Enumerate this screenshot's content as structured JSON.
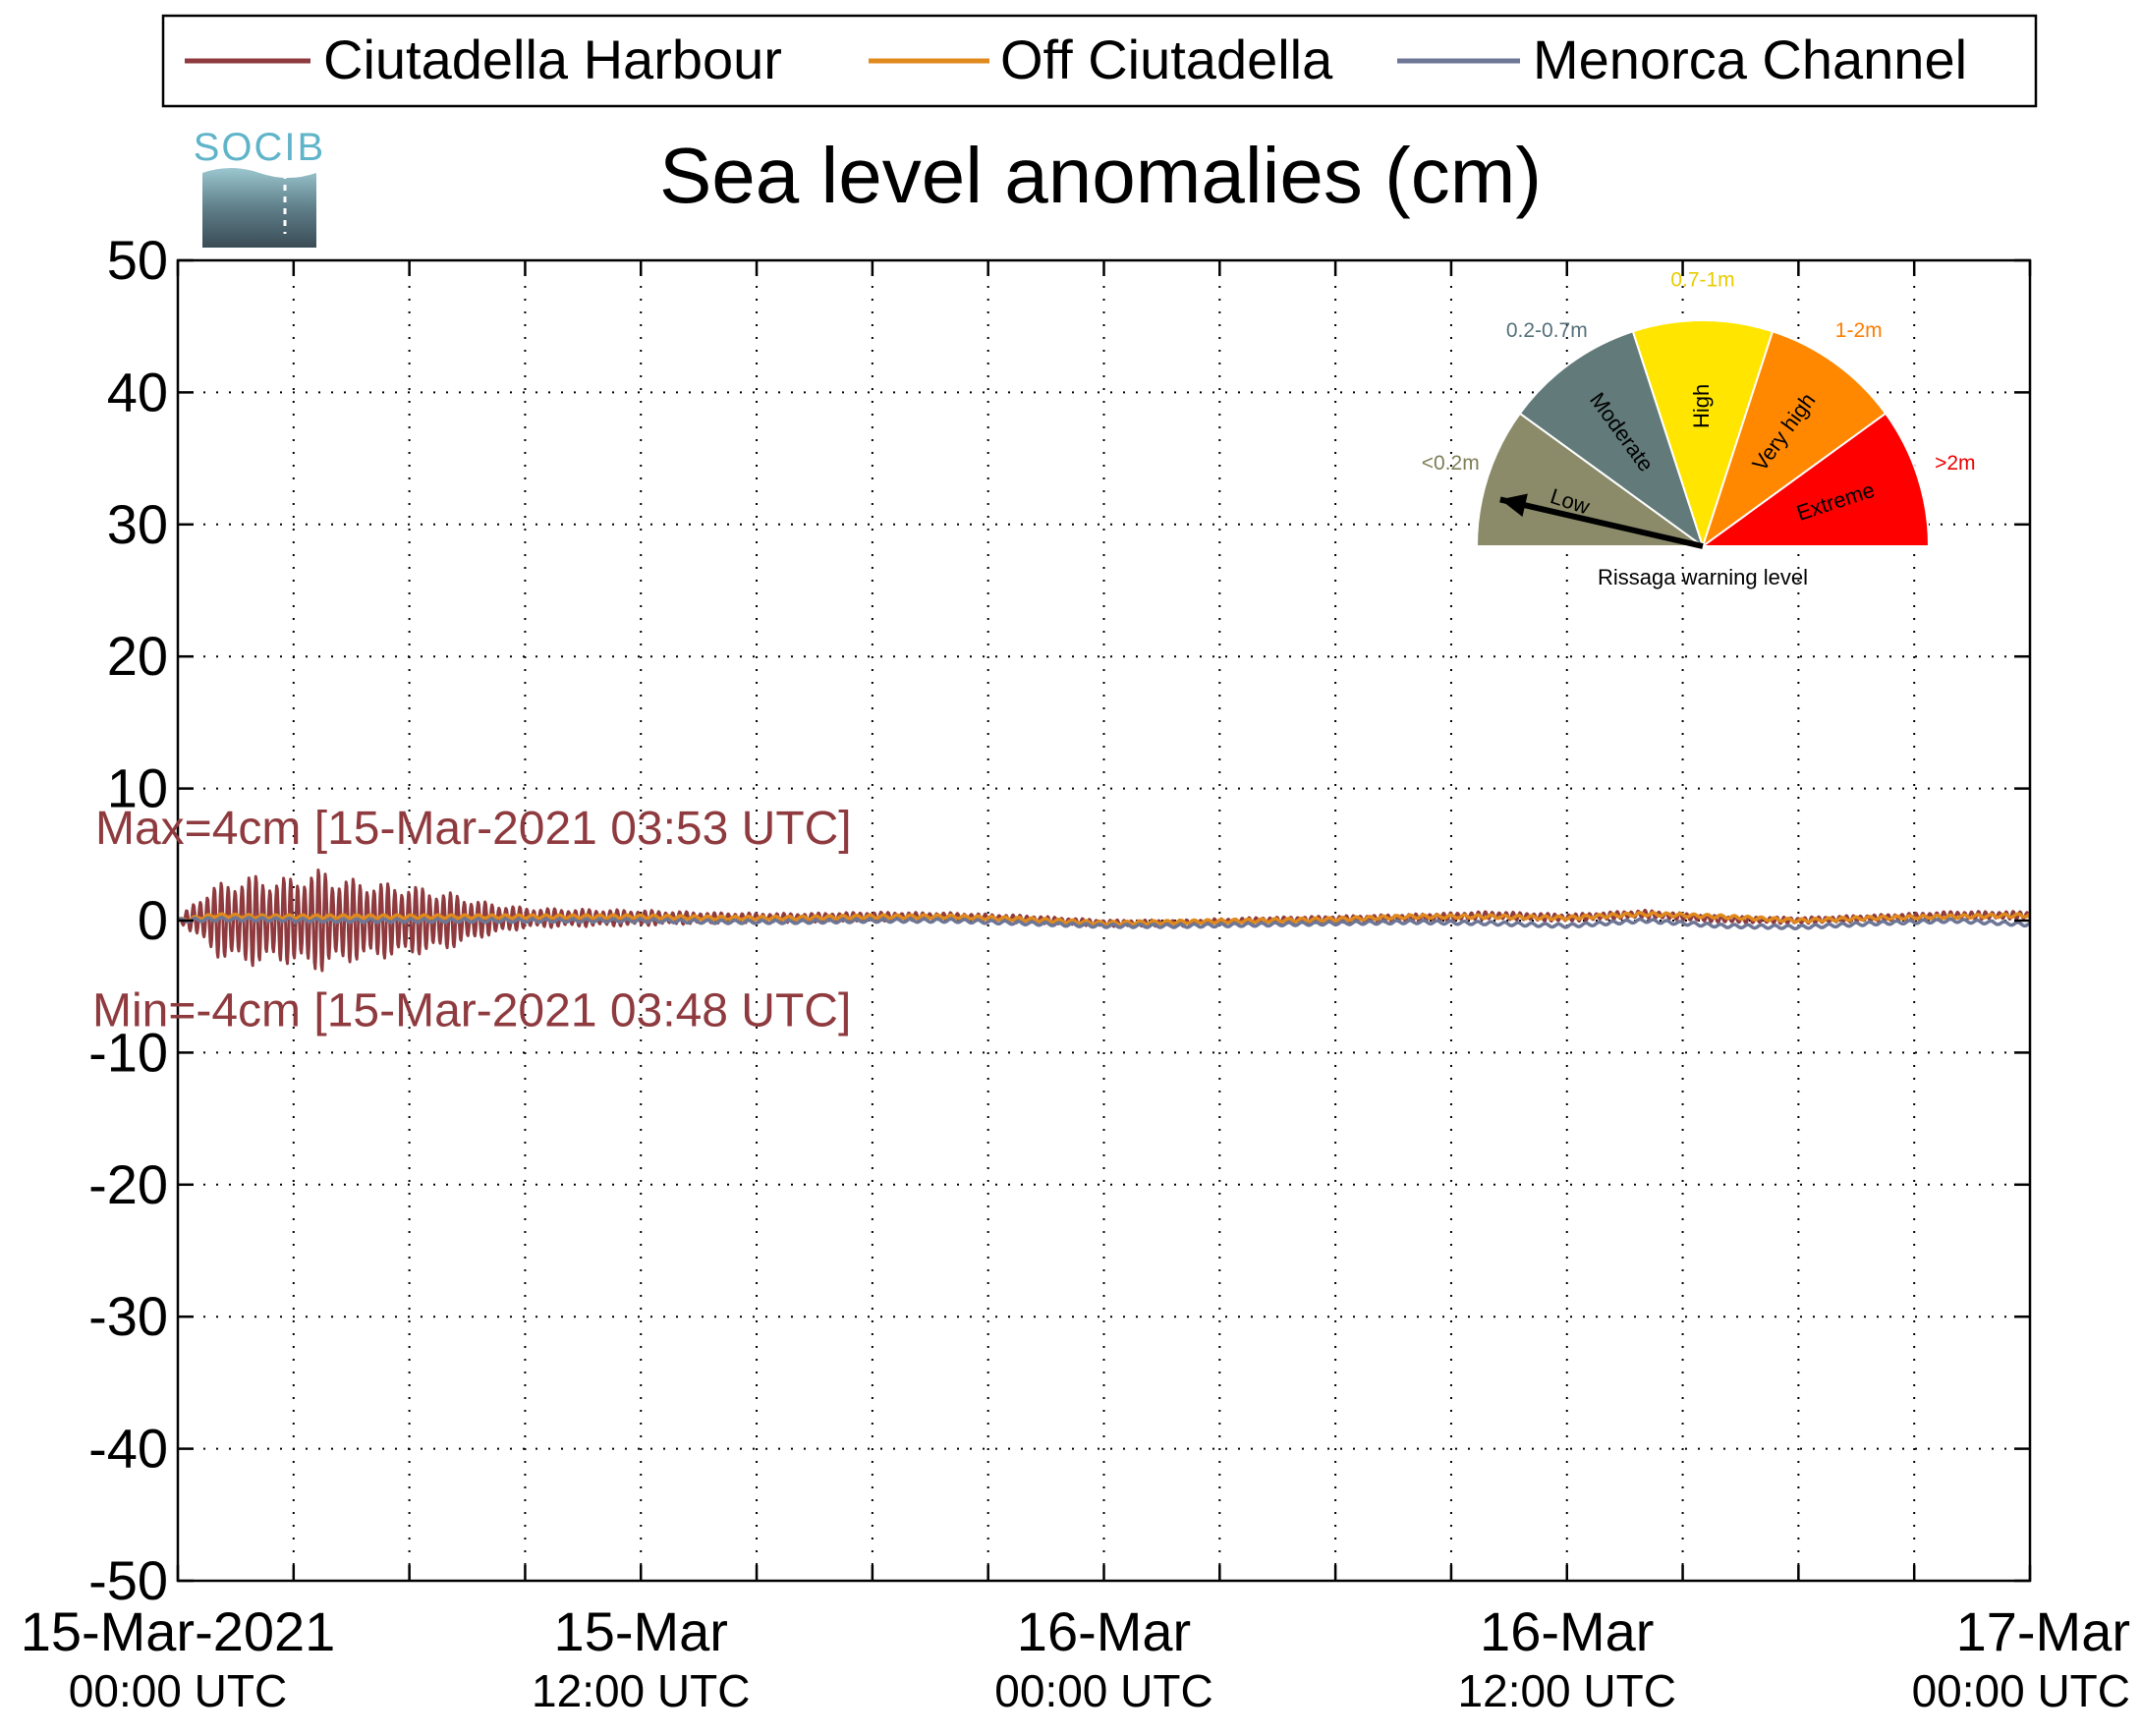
{
  "logo": {
    "text": "SOCIB"
  },
  "chart_data": {
    "type": "line",
    "title": "Sea level anomalies (cm)",
    "xlabel": "",
    "ylabel": "",
    "ylim": [
      -50,
      50
    ],
    "yticks": [
      50,
      40,
      30,
      20,
      10,
      0,
      -10,
      -20,
      -30,
      -40,
      -50
    ],
    "xlim_hours": [
      0,
      48
    ],
    "xtick_labels": [
      {
        "hours": 0,
        "date": "15-Mar-2021",
        "time": "00:00 UTC"
      },
      {
        "hours": 12,
        "date": "15-Mar",
        "time": "12:00 UTC"
      },
      {
        "hours": 24,
        "date": "16-Mar",
        "time": "00:00 UTC"
      },
      {
        "hours": 36,
        "date": "16-Mar",
        "time": "12:00 UTC"
      },
      {
        "hours": 48,
        "date": "17-Mar",
        "time": "00:00 UTC"
      }
    ],
    "grid": true,
    "legend_position": "top",
    "series": [
      {
        "name": "Ciutadella Harbour",
        "color": "#8e3a3e",
        "x_hours": [
          0,
          0.5,
          1,
          1.5,
          2,
          2.5,
          3,
          3.5,
          3.8,
          4,
          5,
          6,
          7,
          8,
          9,
          10,
          12,
          14,
          16,
          18,
          20,
          22,
          24,
          26,
          28,
          30,
          32,
          34,
          36,
          38,
          40,
          42,
          44,
          46,
          48
        ],
        "envelope_cm": [
          0,
          1.5,
          2.8,
          3.2,
          3.5,
          3.2,
          3.4,
          3.8,
          4.0,
          3.4,
          3.0,
          2.7,
          2.2,
          1.3,
          0.8,
          0.7,
          0.6,
          0.4,
          0.35,
          0.35,
          0.3,
          0.3,
          0.25,
          0.25,
          0.25,
          0.25,
          0.3,
          0.3,
          0.3,
          0.3,
          0.25,
          0.25,
          0.25,
          0.3,
          0.3
        ],
        "mean_cm": [
          0,
          0.2,
          0,
          0,
          0,
          0,
          0,
          0,
          0,
          0,
          0,
          0,
          0,
          0.1,
          0.2,
          0.2,
          0.2,
          0.2,
          0.2,
          0.3,
          0.3,
          0.1,
          -0.2,
          -0.2,
          0.0,
          0.1,
          0.2,
          0.4,
          0.2,
          0.5,
          0.1,
          0.0,
          0.2,
          0.4,
          0.4
        ]
      },
      {
        "name": "Off Ciutadella",
        "color": "#e08a1e",
        "x_hours": [
          0,
          1,
          2,
          4,
          6,
          8,
          10,
          12,
          14,
          16,
          18,
          20,
          22,
          24,
          26,
          28,
          30,
          32,
          34,
          36,
          38,
          40,
          42,
          44,
          46,
          48
        ],
        "mean_cm": [
          0,
          0.4,
          0.3,
          0.3,
          0.3,
          0.3,
          0.3,
          0.3,
          0.2,
          0.2,
          0.3,
          0.3,
          0.1,
          -0.2,
          -0.1,
          0.0,
          0.1,
          0.3,
          0.3,
          0.2,
          0.5,
          0.3,
          0.0,
          0.2,
          0.3,
          0.4
        ]
      },
      {
        "name": "Menorca Channel",
        "color": "#6e7696",
        "x_hours": [
          0,
          1,
          2,
          4,
          6,
          8,
          10,
          12,
          14,
          16,
          18,
          20,
          22,
          24,
          26,
          28,
          30,
          32,
          34,
          36,
          38,
          40,
          42,
          44,
          46,
          48
        ],
        "mean_cm": [
          0,
          0.1,
          0.1,
          0.0,
          0.0,
          0.0,
          0.0,
          0.0,
          -0.1,
          -0.1,
          0.0,
          0.0,
          -0.2,
          -0.4,
          -0.4,
          -0.3,
          -0.2,
          -0.1,
          -0.2,
          -0.4,
          0.0,
          -0.4,
          -0.5,
          -0.2,
          0.0,
          -0.3
        ]
      }
    ],
    "annotations": [
      {
        "text": "Max=4cm [15-Mar-2021 03:53 UTC]",
        "y_cm": 7
      },
      {
        "text": "Min=-4cm [15-Mar-2021 03:48 UTC]",
        "y_cm": -6.8
      }
    ],
    "gauge": {
      "title": "Rissaga warning level",
      "pointer_segment": "Low",
      "segments": [
        {
          "name": "Low",
          "range": "<0.2m",
          "color": "#8b8b6a",
          "label_color": "#7e7e58"
        },
        {
          "name": "Moderate",
          "range": "0.2-0.7m",
          "color": "#627a7a",
          "label_color": "#55707a"
        },
        {
          "name": "High",
          "range": "0.7-1m",
          "color": "#ffe500",
          "label_color": "#e8cc00"
        },
        {
          "name": "Very high",
          "range": "1-2m",
          "color": "#ff8800",
          "label_color": "#ff7b00"
        },
        {
          "name": "Extreme",
          "range": ">2m",
          "color": "#ff0000",
          "label_color": "#ee0000"
        }
      ]
    }
  }
}
